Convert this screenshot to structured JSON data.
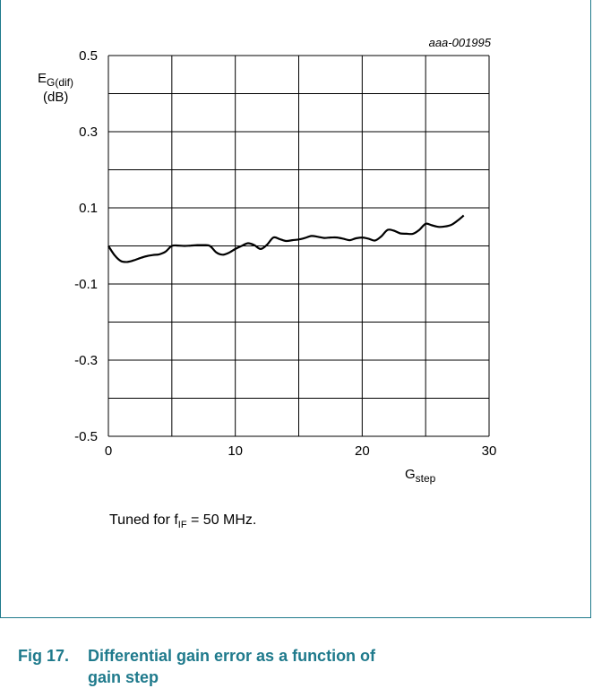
{
  "chart_data": {
    "type": "line",
    "code": "aaa-001995",
    "ylabel_main": "E",
    "ylabel_sub": "G(dif)",
    "ylabel_unit": "(dB)",
    "xlabel_main": "G",
    "xlabel_sub": "step",
    "xlim": [
      0,
      30
    ],
    "ylim": [
      -0.5,
      0.5
    ],
    "x_ticks": [
      0,
      10,
      20,
      30
    ],
    "x_tick_labels": [
      "0",
      "10",
      "20",
      "30"
    ],
    "y_ticks": [
      0.5,
      0.3,
      0.1,
      -0.1,
      -0.3,
      -0.5
    ],
    "y_tick_labels": [
      "0.5",
      "0.3",
      "0.1",
      "-0.1",
      "-0.3",
      "-0.5"
    ],
    "x_grid": [
      0,
      5,
      10,
      15,
      20,
      25,
      30
    ],
    "y_grid": [
      0.5,
      0.4,
      0.3,
      0.2,
      0.1,
      0.0,
      -0.1,
      -0.2,
      -0.3,
      -0.4,
      -0.5
    ],
    "grid": true,
    "series": [
      {
        "x": [
          0,
          0.5,
          1,
          1.5,
          2,
          2.5,
          3,
          3.5,
          4,
          4.5,
          5,
          5.5,
          6,
          6.5,
          7,
          7.5,
          8,
          8.5,
          9,
          9.5,
          10,
          10.5,
          11,
          11.5,
          12,
          12.5,
          13,
          13.5,
          14,
          14.5,
          15,
          15.5,
          16,
          16.5,
          17,
          17.5,
          18,
          18.5,
          19,
          19.5,
          20,
          20.5,
          21,
          21.5,
          22,
          22.5,
          23,
          23.5,
          24,
          24.5,
          25,
          25.5,
          26,
          26.5,
          27,
          27.5,
          28
        ],
        "values": [
          0.0,
          -0.025,
          -0.04,
          -0.042,
          -0.038,
          -0.032,
          -0.027,
          -0.024,
          -0.022,
          -0.015,
          0.0,
          0.001,
          0.0,
          0.001,
          0.002,
          0.002,
          0.0,
          -0.017,
          -0.023,
          -0.018,
          -0.008,
          0.0,
          0.007,
          0.002,
          -0.008,
          0.003,
          0.022,
          0.018,
          0.013,
          0.015,
          0.017,
          0.021,
          0.026,
          0.024,
          0.021,
          0.022,
          0.022,
          0.019,
          0.015,
          0.02,
          0.022,
          0.019,
          0.014,
          0.025,
          0.042,
          0.04,
          0.033,
          0.032,
          0.032,
          0.042,
          0.058,
          0.054,
          0.05,
          0.051,
          0.055,
          0.066,
          0.08
        ]
      }
    ]
  },
  "note": {
    "prefix": "Tuned for f",
    "sub": "IF",
    "suffix": " = 50 MHz."
  },
  "figure": {
    "number": "Fig 17.",
    "text": "Differential gain error as a function of",
    "text2": "gain step"
  }
}
